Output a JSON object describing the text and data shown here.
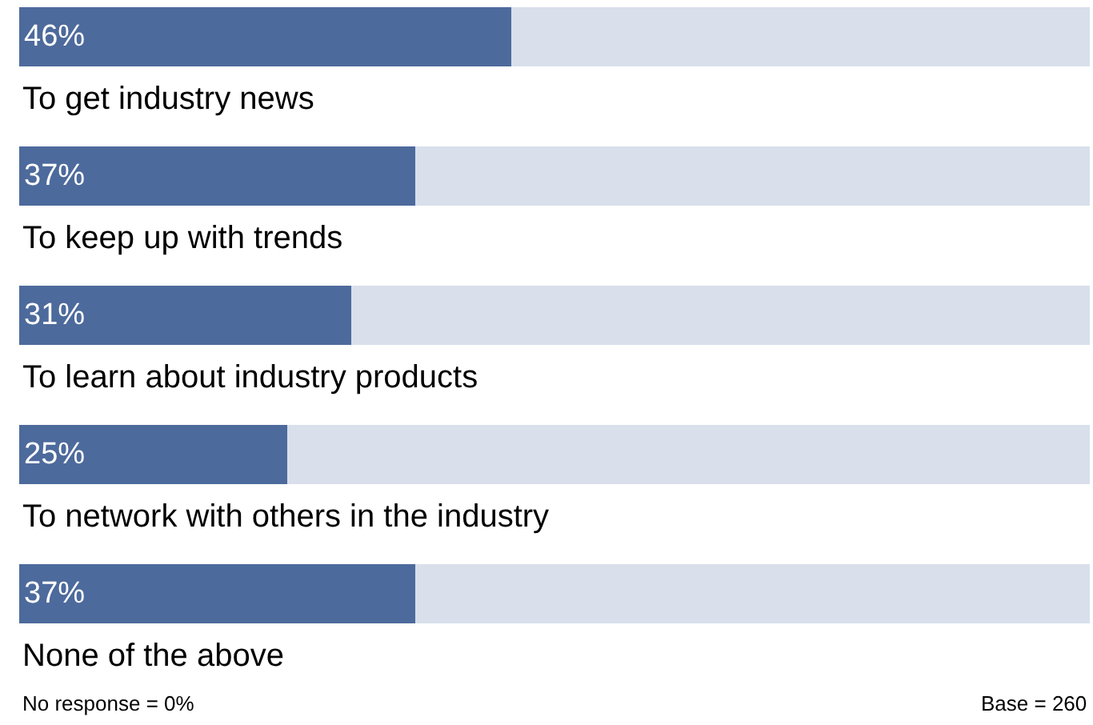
{
  "chart_data": {
    "type": "bar",
    "orientation": "horizontal",
    "stacked": true,
    "categories": [
      "To get industry news",
      "To keep up with trends",
      "To learn about industry products",
      "To network with others in the industry",
      "None of the above"
    ],
    "series": [
      {
        "color": "#4d6a9c",
        "values": [
          46,
          37,
          31,
          25,
          37
        ],
        "value_labels": [
          "46%",
          "37%",
          "31%",
          "25%",
          "37%"
        ]
      },
      {
        "color": "#d9dfeb",
        "values": [
          54,
          63,
          69,
          75,
          63
        ]
      }
    ],
    "xlim": [
      0,
      100
    ],
    "tick_labels": false,
    "annotations": [
      "No response = 0%",
      "Base = 260"
    ]
  }
}
